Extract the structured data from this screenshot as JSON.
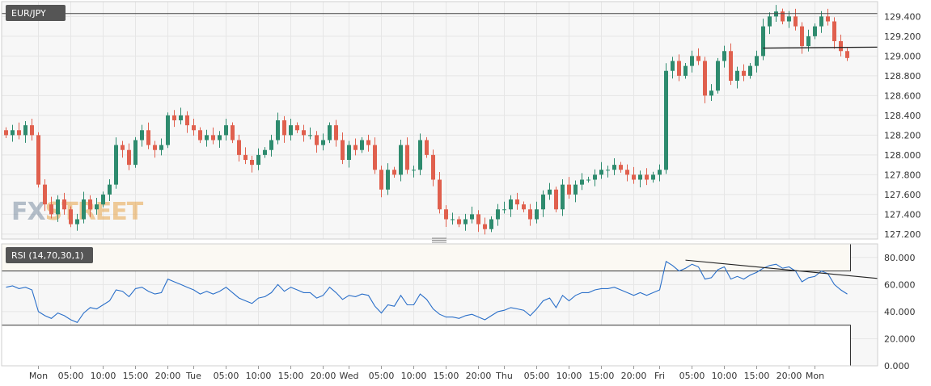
{
  "chart_data": [
    {
      "type": "candlestick",
      "title": "EUR/JPY",
      "ylim": [
        127.15,
        129.55
      ],
      "y_ticks": [
        "129.400",
        "129.200",
        "129.000",
        "128.800",
        "128.600",
        "128.400",
        "128.200",
        "128.000",
        "127.800",
        "127.600",
        "127.400",
        "127.200"
      ],
      "grid": true,
      "watermark": "FXSTREET",
      "colors": {
        "up": "#2e8b6e",
        "down": "#e0604e",
        "background": "#f7f7f7",
        "grid": "#e6e6e6"
      },
      "annotations": [
        {
          "type": "horizontal-line",
          "y": 129.43
        },
        {
          "type": "trendline",
          "from": {
            "candle": 117,
            "y": 129.08
          },
          "to": {
            "candle": 141,
            "y": 129.09
          }
        }
      ],
      "close_start": 128.25,
      "closes": [
        128.2,
        128.25,
        128.2,
        128.3,
        128.2,
        127.7,
        127.5,
        127.4,
        127.55,
        127.45,
        127.3,
        127.35,
        127.55,
        127.45,
        127.5,
        127.6,
        127.7,
        128.1,
        128.05,
        127.9,
        128.15,
        128.25,
        128.1,
        128.05,
        128.1,
        128.4,
        128.35,
        128.4,
        128.3,
        128.25,
        128.15,
        128.2,
        128.15,
        128.2,
        128.3,
        128.15,
        128.0,
        127.95,
        127.9,
        128.0,
        128.05,
        128.15,
        128.35,
        128.2,
        128.3,
        128.25,
        128.2,
        128.2,
        128.1,
        128.15,
        128.3,
        128.15,
        127.95,
        128.1,
        128.05,
        128.15,
        128.1,
        127.85,
        127.65,
        127.85,
        127.8,
        128.1,
        127.85,
        127.85,
        128.15,
        128.0,
        127.75,
        127.45,
        127.35,
        127.35,
        127.3,
        127.35,
        127.4,
        127.3,
        127.25,
        127.35,
        127.45,
        127.45,
        127.55,
        127.5,
        127.45,
        127.35,
        127.45,
        127.6,
        127.65,
        127.45,
        127.7,
        127.6,
        127.7,
        127.75,
        127.75,
        127.8,
        127.85,
        127.85,
        127.9,
        127.85,
        127.8,
        127.75,
        127.8,
        127.75,
        127.8,
        127.85,
        128.85,
        128.95,
        128.8,
        128.9,
        129.0,
        128.95,
        128.6,
        128.65,
        128.95,
        129.05,
        128.75,
        128.85,
        128.8,
        128.9,
        129.0,
        129.3,
        129.4,
        129.45,
        129.35,
        129.4,
        129.3,
        129.1,
        129.2,
        129.3,
        129.4,
        129.35,
        129.15,
        129.05,
        128.98
      ],
      "x_ticks": [
        {
          "label": "Mon",
          "idx": 5
        },
        {
          "label": "05:00",
          "idx": 10
        },
        {
          "label": "10:00",
          "idx": 15
        },
        {
          "label": "15:00",
          "idx": 20
        },
        {
          "label": "20:00",
          "idx": 25
        },
        {
          "label": "Tue",
          "idx": 29
        },
        {
          "label": "05:00",
          "idx": 34
        },
        {
          "label": "10:00",
          "idx": 39
        },
        {
          "label": "15:00",
          "idx": 44
        },
        {
          "label": "20:00",
          "idx": 49
        },
        {
          "label": "Wed",
          "idx": 53
        },
        {
          "label": "05:00",
          "idx": 58
        },
        {
          "label": "10:00",
          "idx": 63
        },
        {
          "label": "15:00",
          "idx": 68
        },
        {
          "label": "20:00",
          "idx": 73
        },
        {
          "label": "Thu",
          "idx": 77
        },
        {
          "label": "05:00",
          "idx": 82
        },
        {
          "label": "10:00",
          "idx": 87
        },
        {
          "label": "15:00",
          "idx": 92
        },
        {
          "label": "20:00",
          "idx": 97
        },
        {
          "label": "Fri",
          "idx": 101
        },
        {
          "label": "05:00",
          "idx": 106
        },
        {
          "label": "10:00",
          "idx": 111
        },
        {
          "label": "15:00",
          "idx": 116
        },
        {
          "label": "20:00",
          "idx": 121
        },
        {
          "label": "Mon",
          "idx": 125
        }
      ]
    },
    {
      "type": "line",
      "title": "RSI (14,70,30,1)",
      "ylim": [
        0,
        90
      ],
      "y_ticks": [
        "80.000",
        "60.000",
        "40.000",
        "20.000",
        "0.000"
      ],
      "levels": [
        70,
        30
      ],
      "series": [
        {
          "values": [
            58,
            59,
            57,
            58,
            56,
            40,
            37,
            35,
            39,
            37,
            34,
            32,
            39,
            43,
            42,
            45,
            48,
            56,
            55,
            51,
            57,
            58,
            55,
            53,
            54,
            64,
            62,
            60,
            58,
            56,
            53,
            55,
            53,
            55,
            58,
            54,
            50,
            48,
            46,
            50,
            51,
            54,
            60,
            55,
            58,
            56,
            54,
            54,
            50,
            52,
            58,
            54,
            49,
            52,
            51,
            53,
            52,
            44,
            39,
            45,
            44,
            52,
            45,
            45,
            53,
            49,
            42,
            38,
            36,
            36,
            35,
            37,
            38,
            36,
            34,
            37,
            40,
            41,
            43,
            42,
            41,
            37,
            42,
            48,
            50,
            43,
            52,
            48,
            52,
            54,
            54,
            56,
            57,
            57,
            58,
            56,
            54,
            52,
            54,
            52,
            54,
            56,
            77,
            74,
            70,
            72,
            75,
            73,
            64,
            65,
            71,
            73,
            64,
            66,
            64,
            67,
            69,
            72,
            74,
            75,
            72,
            73,
            70,
            62,
            65,
            66,
            70,
            68,
            60,
            56,
            53
          ]
        }
      ],
      "annotations": [
        {
          "type": "trendline",
          "from": {
            "idx": 105,
            "y": 78
          },
          "to": {
            "idx": 145,
            "y": 64.5
          }
        }
      ],
      "color": "#2a6fc9"
    }
  ]
}
